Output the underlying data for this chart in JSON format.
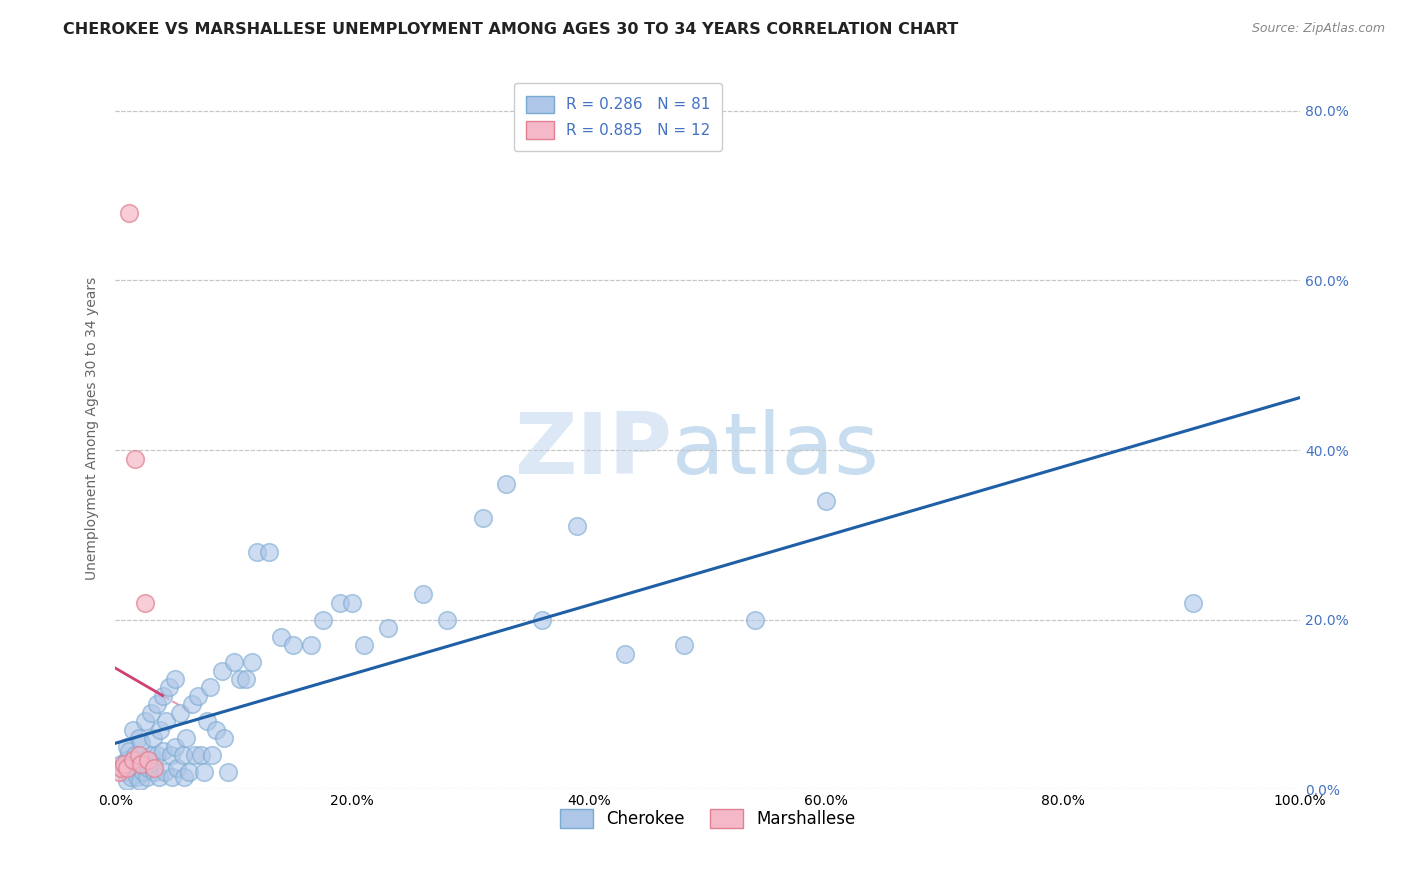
{
  "title": "CHEROKEE VS MARSHALLESE UNEMPLOYMENT AMONG AGES 30 TO 34 YEARS CORRELATION CHART",
  "source": "Source: ZipAtlas.com",
  "ylabel": "Unemployment Among Ages 30 to 34 years",
  "xlabel": "",
  "watermark_zip": "ZIP",
  "watermark_atlas": "atlas",
  "cherokee_R": 0.286,
  "cherokee_N": 81,
  "marshallese_R": 0.885,
  "marshallese_N": 12,
  "cherokee_color": "#aec6e8",
  "cherokee_edge_color": "#7aaad0",
  "cherokee_line_color": "#1f5fa6",
  "marshallese_color": "#f4b8c8",
  "marshallese_edge_color": "#e08090",
  "marshallese_line_color": "#d04070",
  "xlim": [
    0.0,
    1.0
  ],
  "ylim": [
    0.0,
    0.85
  ],
  "xtick_vals": [
    0.0,
    0.2,
    0.4,
    0.6,
    0.8,
    1.0
  ],
  "xtick_labels": [
    "0.0%",
    "20.0%",
    "40.0%",
    "60.0%",
    "80.0%",
    "100.0%"
  ],
  "ytick_vals": [
    0.0,
    0.2,
    0.4,
    0.6,
    0.8
  ],
  "ytick_labels": [
    "0.0%",
    "20.0%",
    "40.0%",
    "60.0%",
    "80.0%"
  ],
  "grid_color": "#c8c8c8",
  "background_color": "#ffffff",
  "title_fontsize": 11.5,
  "axis_label_fontsize": 10,
  "tick_fontsize": 10,
  "legend_fontsize": 11,
  "right_tick_color": "#4472c4",
  "cherokee_x": [
    0.005,
    0.007,
    0.008,
    0.01,
    0.01,
    0.01,
    0.012,
    0.013,
    0.015,
    0.015,
    0.017,
    0.018,
    0.02,
    0.02,
    0.021,
    0.022,
    0.023,
    0.025,
    0.025,
    0.027,
    0.028,
    0.03,
    0.03,
    0.032,
    0.033,
    0.035,
    0.035,
    0.037,
    0.038,
    0.04,
    0.04,
    0.042,
    0.043,
    0.045,
    0.047,
    0.048,
    0.05,
    0.05,
    0.052,
    0.055,
    0.057,
    0.058,
    0.06,
    0.062,
    0.065,
    0.067,
    0.07,
    0.072,
    0.075,
    0.077,
    0.08,
    0.082,
    0.085,
    0.09,
    0.092,
    0.095,
    0.1,
    0.105,
    0.11,
    0.115,
    0.12,
    0.13,
    0.14,
    0.15,
    0.165,
    0.175,
    0.19,
    0.2,
    0.21,
    0.23,
    0.26,
    0.28,
    0.31,
    0.33,
    0.36,
    0.39,
    0.43,
    0.48,
    0.54,
    0.6,
    0.91
  ],
  "cherokee_y": [
    0.03,
    0.025,
    0.02,
    0.05,
    0.035,
    0.01,
    0.045,
    0.015,
    0.07,
    0.03,
    0.04,
    0.015,
    0.06,
    0.03,
    0.01,
    0.055,
    0.02,
    0.08,
    0.035,
    0.015,
    0.025,
    0.09,
    0.04,
    0.06,
    0.02,
    0.1,
    0.04,
    0.015,
    0.07,
    0.11,
    0.045,
    0.02,
    0.08,
    0.12,
    0.04,
    0.015,
    0.13,
    0.05,
    0.025,
    0.09,
    0.04,
    0.015,
    0.06,
    0.02,
    0.1,
    0.04,
    0.11,
    0.04,
    0.02,
    0.08,
    0.12,
    0.04,
    0.07,
    0.14,
    0.06,
    0.02,
    0.15,
    0.13,
    0.13,
    0.15,
    0.28,
    0.28,
    0.18,
    0.17,
    0.17,
    0.2,
    0.22,
    0.22,
    0.17,
    0.19,
    0.23,
    0.2,
    0.32,
    0.36,
    0.2,
    0.31,
    0.16,
    0.17,
    0.2,
    0.34,
    0.22
  ],
  "marshallese_x": [
    0.003,
    0.005,
    0.007,
    0.01,
    0.012,
    0.015,
    0.017,
    0.02,
    0.022,
    0.025,
    0.028,
    0.033
  ],
  "marshallese_y": [
    0.02,
    0.025,
    0.03,
    0.025,
    0.68,
    0.035,
    0.39,
    0.04,
    0.03,
    0.22,
    0.035,
    0.025
  ]
}
